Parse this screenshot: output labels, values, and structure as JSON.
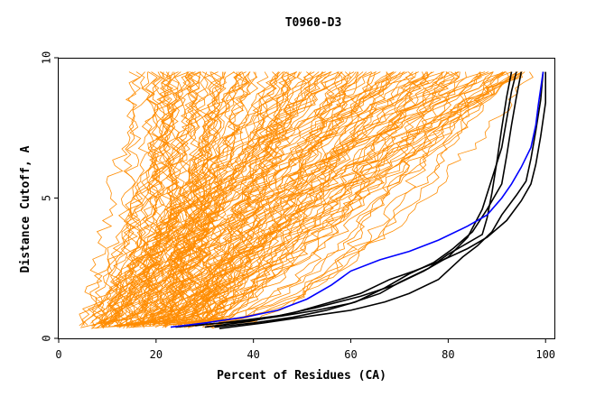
{
  "chart_data": {
    "type": "line",
    "title": "T0960-D3",
    "xlabel": "Percent of Residues (CA)",
    "ylabel": "Distance Cutoff, A",
    "xlim": [
      0,
      102
    ],
    "ylim": [
      0,
      10
    ],
    "x_ticks": [
      "0",
      "20",
      "40",
      "60",
      "80",
      "100"
    ],
    "y_ticks": [
      "0",
      "5",
      "10"
    ],
    "grid": false,
    "legend": "none",
    "colors": {
      "others": "#ff8c00",
      "highlight": "#000000",
      "best": "#0000ff",
      "axis": "#000000"
    },
    "series": [
      {
        "role": "highlight",
        "points": [
          [
            24,
            0.4
          ],
          [
            30,
            0.5
          ],
          [
            38,
            0.6
          ],
          [
            46,
            0.8
          ],
          [
            53,
            1.0
          ],
          [
            60,
            1.25
          ],
          [
            66,
            1.6
          ],
          [
            70,
            2.0
          ],
          [
            76,
            2.5
          ],
          [
            80,
            3.0
          ],
          [
            84,
            3.4
          ],
          [
            87,
            3.7
          ],
          [
            88,
            4.3
          ],
          [
            89,
            5.2
          ],
          [
            90,
            6.3
          ],
          [
            91,
            7.5
          ],
          [
            92,
            8.6
          ],
          [
            93,
            9.5
          ]
        ]
      },
      {
        "role": "highlight",
        "points": [
          [
            32,
            0.4
          ],
          [
            40,
            0.55
          ],
          [
            48,
            0.75
          ],
          [
            55,
            1.0
          ],
          [
            61,
            1.3
          ],
          [
            67,
            1.8
          ],
          [
            72,
            2.3
          ],
          [
            77,
            2.7
          ],
          [
            81,
            3.2
          ],
          [
            85,
            3.8
          ],
          [
            88,
            4.6
          ],
          [
            91,
            5.5
          ],
          [
            92,
            6.5
          ],
          [
            93,
            7.6
          ],
          [
            94,
            8.6
          ],
          [
            95,
            9.5
          ]
        ]
      },
      {
        "role": "highlight",
        "points": [
          [
            28,
            0.45
          ],
          [
            36,
            0.6
          ],
          [
            45,
            0.8
          ],
          [
            53,
            1.1
          ],
          [
            62,
            1.5
          ],
          [
            69,
            1.9
          ],
          [
            75,
            2.4
          ],
          [
            80,
            2.9
          ],
          [
            84,
            3.6
          ],
          [
            87,
            4.6
          ],
          [
            89,
            5.7
          ],
          [
            91,
            6.8
          ],
          [
            92,
            7.8
          ],
          [
            93,
            8.8
          ],
          [
            94,
            9.5
          ]
        ]
      },
      {
        "role": "highlight",
        "points": [
          [
            33,
            0.35
          ],
          [
            42,
            0.55
          ],
          [
            52,
            0.8
          ],
          [
            60,
            1.0
          ],
          [
            67,
            1.3
          ],
          [
            72,
            1.6
          ],
          [
            78,
            2.1
          ],
          [
            83,
            2.9
          ],
          [
            86,
            3.3
          ],
          [
            89,
            3.8
          ],
          [
            91,
            4.4
          ],
          [
            94,
            5.1
          ],
          [
            96,
            5.6
          ],
          [
            97,
            6.4
          ],
          [
            98,
            7.4
          ],
          [
            99,
            8.5
          ],
          [
            99.5,
            9.5
          ]
        ]
      },
      {
        "role": "highlight",
        "points": [
          [
            30,
            0.4
          ],
          [
            39,
            0.6
          ],
          [
            48,
            0.9
          ],
          [
            56,
            1.3
          ],
          [
            62,
            1.6
          ],
          [
            68,
            2.1
          ],
          [
            73,
            2.4
          ],
          [
            79,
            2.8
          ],
          [
            84,
            3.2
          ],
          [
            88,
            3.6
          ],
          [
            92,
            4.2
          ],
          [
            95,
            4.9
          ],
          [
            97,
            5.5
          ],
          [
            98,
            6.2
          ],
          [
            99,
            7.2
          ],
          [
            100,
            8.4
          ],
          [
            100,
            9.5
          ]
        ]
      },
      {
        "role": "best",
        "points": [
          [
            23,
            0.4
          ],
          [
            30,
            0.55
          ],
          [
            38,
            0.75
          ],
          [
            45,
            1.0
          ],
          [
            51,
            1.4
          ],
          [
            56,
            1.9
          ],
          [
            60,
            2.4
          ],
          [
            66,
            2.8
          ],
          [
            72,
            3.1
          ],
          [
            78,
            3.5
          ],
          [
            84,
            4.0
          ],
          [
            88,
            4.4
          ],
          [
            91,
            5.0
          ],
          [
            93,
            5.5
          ],
          [
            95,
            6.1
          ],
          [
            97,
            6.8
          ],
          [
            98,
            7.6
          ],
          [
            98.5,
            8.3
          ],
          [
            99,
            8.9
          ],
          [
            99.5,
            9.5
          ]
        ]
      }
    ]
  }
}
